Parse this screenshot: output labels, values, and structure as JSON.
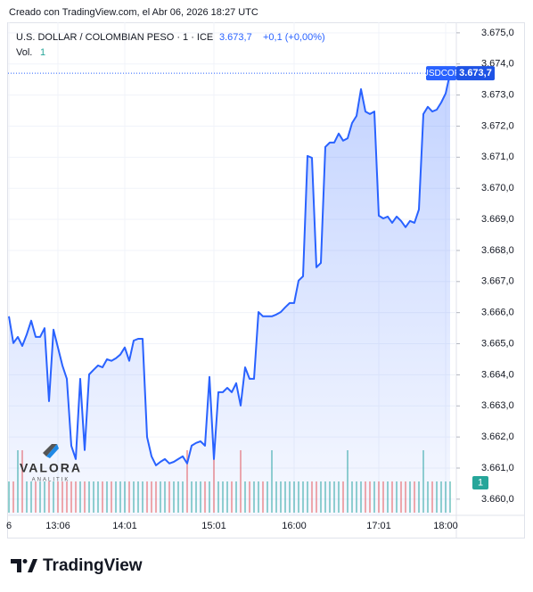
{
  "credit": "Creado con TradingView.com, el Abr 06, 2026 18:27 UTC",
  "logo": "TradingView",
  "brand": {
    "name": "VALORA",
    "tagline": "ANALITIK"
  },
  "chart_data": {
    "type": "line",
    "title": "U.S. DOLLAR / COLOMBIAN PESO · 1 · ICE",
    "price_label": "3.673,7",
    "change_label": "+0,1 (+0,00%)",
    "volume_title": "Vol.",
    "volume_label": "1",
    "symbol": "USDCOP",
    "color": "#2962ff",
    "up_color": "#26a69a",
    "down_color": "#ef5350",
    "grid": true,
    "categories": [
      "6",
      null,
      null,
      null,
      null,
      null,
      null,
      null,
      null,
      null,
      null,
      "13:06",
      null,
      null,
      null,
      null,
      null,
      null,
      null,
      null,
      null,
      null,
      null,
      null,
      null,
      null,
      "14:01",
      null,
      null,
      null,
      null,
      null,
      null,
      null,
      null,
      null,
      null,
      null,
      null,
      null,
      null,
      null,
      null,
      null,
      null,
      null,
      "15:01",
      null,
      null,
      null,
      null,
      null,
      null,
      null,
      null,
      null,
      null,
      null,
      null,
      null,
      null,
      null,
      null,
      null,
      "16:00",
      null,
      null,
      null,
      null,
      null,
      null,
      null,
      null,
      null,
      null,
      null,
      null,
      null,
      null,
      null,
      null,
      null,
      null,
      "17:01",
      null,
      null,
      null,
      null,
      null,
      null,
      null,
      null,
      null,
      null,
      null,
      null,
      null,
      null,
      "18:00",
      null
    ],
    "values": [
      3665.88,
      3665.02,
      3665.22,
      3664.93,
      3665.3,
      3665.74,
      3665.22,
      3665.22,
      3665.5,
      3663.15,
      3665.45,
      3664.88,
      3664.3,
      3663.87,
      3661.72,
      3661.29,
      3663.87,
      3661.58,
      3664.01,
      3664.16,
      3664.3,
      3664.24,
      3664.5,
      3664.45,
      3664.53,
      3664.65,
      3664.88,
      3664.45,
      3665.1,
      3665.16,
      3665.16,
      3662.0,
      3661.38,
      3661.09,
      3661.2,
      3661.29,
      3661.15,
      3661.2,
      3661.29,
      3661.38,
      3661.15,
      3661.72,
      3661.81,
      3661.86,
      3661.72,
      3663.93,
      3661.29,
      3663.44,
      3663.44,
      3663.58,
      3663.44,
      3663.73,
      3663.01,
      3664.24,
      3663.87,
      3663.87,
      3666.02,
      3665.88,
      3665.88,
      3665.88,
      3665.94,
      3666.02,
      3666.17,
      3666.31,
      3666.31,
      3667.03,
      3667.17,
      3671.04,
      3670.98,
      3667.46,
      3667.6,
      3671.33,
      3671.47,
      3671.47,
      3671.76,
      3671.53,
      3671.61,
      3672.1,
      3672.33,
      3673.19,
      3672.47,
      3672.39,
      3672.47,
      3669.12,
      3669.03,
      3669.09,
      3668.89,
      3669.09,
      3668.95,
      3668.75,
      3668.95,
      3668.89,
      3669.32,
      3672.39,
      3672.62,
      3672.47,
      3672.53,
      3672.76,
      3673.05,
      3673.7
    ],
    "volume": {
      "values": [
        1,
        1,
        2,
        2,
        1,
        1,
        1,
        1,
        1,
        1,
        1,
        1,
        1,
        1,
        1,
        1,
        1,
        1,
        1,
        1,
        1,
        1,
        1,
        1,
        1,
        1,
        1,
        1,
        1,
        1,
        1,
        1,
        1,
        1,
        1,
        1,
        1,
        1,
        1,
        1,
        2,
        1,
        1,
        1,
        1,
        1,
        2,
        1,
        1,
        1,
        1,
        1,
        2,
        1,
        1,
        1,
        1,
        1,
        1,
        2,
        1,
        1,
        1,
        1,
        1,
        1,
        1,
        1,
        1,
        1,
        1,
        1,
        1,
        1,
        1,
        1,
        2,
        1,
        1,
        1,
        1,
        1,
        1,
        1,
        1,
        1,
        1,
        1,
        1,
        1,
        1,
        1,
        1,
        2,
        1,
        1,
        1,
        1,
        1,
        1
      ]
    },
    "ylim": [
      3659.48,
      3675.34
    ],
    "yticks": [
      {
        "value": 3660,
        "label": "3.660,0"
      },
      {
        "value": 3661,
        "label": "3.661,0"
      },
      {
        "value": 3662,
        "label": "3.662,0"
      },
      {
        "value": 3663,
        "label": "3.663,0"
      },
      {
        "value": 3664,
        "label": "3.664,0"
      },
      {
        "value": 3665,
        "label": "3.665,0"
      },
      {
        "value": 3666,
        "label": "3.666,0"
      },
      {
        "value": 3667,
        "label": "3.667,0"
      },
      {
        "value": 3668,
        "label": "3.668,0"
      },
      {
        "value": 3669,
        "label": "3.669,0"
      },
      {
        "value": 3670,
        "label": "3.670,0"
      },
      {
        "value": 3671,
        "label": "3.671,0"
      },
      {
        "value": 3672,
        "label": "3.672,0"
      },
      {
        "value": 3673,
        "label": "3.673,0"
      },
      {
        "value": 3674,
        "label": "3.674,0"
      },
      {
        "value": 3675,
        "label": "3.675,0"
      }
    ]
  }
}
